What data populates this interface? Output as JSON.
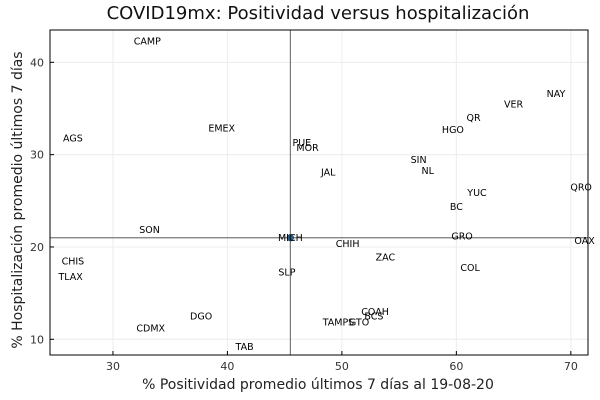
{
  "chart_data": {
    "type": "scatter",
    "title": "COVID19mx: Positividad versus hospitalización",
    "xlabel": "% Positividad promedio últimos 7 días al 19-08-20",
    "ylabel": "% Hospitalización promedio últimos 7 días",
    "xlim": [
      24.5,
      71.5
    ],
    "ylim": [
      8.3,
      43.5
    ],
    "xticks": [
      30,
      40,
      50,
      60,
      70
    ],
    "yticks": [
      10,
      20,
      30,
      40
    ],
    "grid": true,
    "reference_lines": {
      "x": 45.5,
      "y": 21.0
    },
    "marker_color": "#2b5f8a",
    "points": [
      {
        "label": "CAMP",
        "x": 33.0,
        "y": 42.3
      },
      {
        "label": "AGS",
        "x": 26.5,
        "y": 31.8
      },
      {
        "label": "EMEX",
        "x": 39.5,
        "y": 32.9
      },
      {
        "label": "PUE",
        "x": 46.5,
        "y": 31.3
      },
      {
        "label": "MOR",
        "x": 47.0,
        "y": 30.8
      },
      {
        "label": "JAL",
        "x": 48.8,
        "y": 28.1
      },
      {
        "label": "SON",
        "x": 33.2,
        "y": 21.9
      },
      {
        "label": "CHIS",
        "x": 26.5,
        "y": 18.5
      },
      {
        "label": "TLAX",
        "x": 26.3,
        "y": 16.8
      },
      {
        "label": "MICH",
        "x": 45.5,
        "y": 21.0
      },
      {
        "label": "SLP",
        "x": 45.2,
        "y": 17.3
      },
      {
        "label": "CHIH",
        "x": 50.5,
        "y": 20.4
      },
      {
        "label": "ZAC",
        "x": 53.8,
        "y": 18.9
      },
      {
        "label": "DGO",
        "x": 37.7,
        "y": 12.5
      },
      {
        "label": "CDMX",
        "x": 33.3,
        "y": 11.2
      },
      {
        "label": "TAB",
        "x": 41.5,
        "y": 9.2
      },
      {
        "label": "TAMPS",
        "x": 49.7,
        "y": 11.9
      },
      {
        "label": "GTO",
        "x": 51.5,
        "y": 11.9
      },
      {
        "label": "BCS",
        "x": 52.8,
        "y": 12.5
      },
      {
        "label": "COAH",
        "x": 52.9,
        "y": 13.0
      },
      {
        "label": "NAY",
        "x": 68.7,
        "y": 36.6
      },
      {
        "label": "VER",
        "x": 65.0,
        "y": 35.5
      },
      {
        "label": "QR",
        "x": 61.5,
        "y": 34.0
      },
      {
        "label": "HGO",
        "x": 59.7,
        "y": 32.7
      },
      {
        "label": "SIN",
        "x": 56.7,
        "y": 29.5
      },
      {
        "label": "NL",
        "x": 57.5,
        "y": 28.3
      },
      {
        "label": "QRO",
        "x": 70.9,
        "y": 26.5
      },
      {
        "label": "YUC",
        "x": 61.8,
        "y": 25.9
      },
      {
        "label": "BC",
        "x": 60.0,
        "y": 24.4
      },
      {
        "label": "GRO",
        "x": 60.5,
        "y": 21.2
      },
      {
        "label": "OAX",
        "x": 71.2,
        "y": 20.7
      },
      {
        "label": "COL",
        "x": 61.2,
        "y": 17.8
      }
    ]
  }
}
